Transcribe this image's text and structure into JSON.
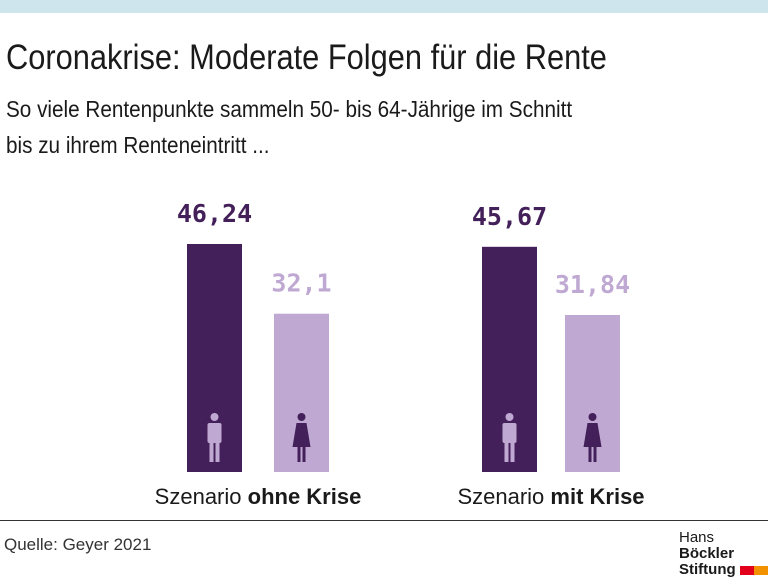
{
  "title": "Coronakrise: Moderate Folgen für die Rente",
  "subtitle1": "So viele Rentenpunkte sammeln 50- bis 64-Jährige im Schnitt",
  "subtitle2": "bis zu ihrem Renteneintritt ...",
  "source": "Quelle: Geyer 2021",
  "logo": {
    "line1a": "Hans",
    "line1b": "Böckler",
    "line2": "Stiftung"
  },
  "colors": {
    "men": "#44205a",
    "women": "#bfa9d3",
    "band": "#cfe5ee",
    "logo_red": "#e2001a",
    "logo_orange": "#f39200"
  },
  "chart_data": {
    "type": "bar",
    "categories": [
      {
        "pre": "Szenario ",
        "bold": "ohne Krise"
      },
      {
        "pre": "Szenario ",
        "bold": "mit Krise"
      }
    ],
    "series": [
      {
        "icon": "man-icon",
        "values": [
          46.24,
          45.67
        ],
        "labels": [
          "46,24",
          "45,67"
        ]
      },
      {
        "icon": "woman-icon",
        "values": [
          32.1,
          31.84
        ],
        "labels": [
          "32,1",
          "31,84"
        ]
      }
    ],
    "ylim": [
      0,
      46.24
    ]
  }
}
